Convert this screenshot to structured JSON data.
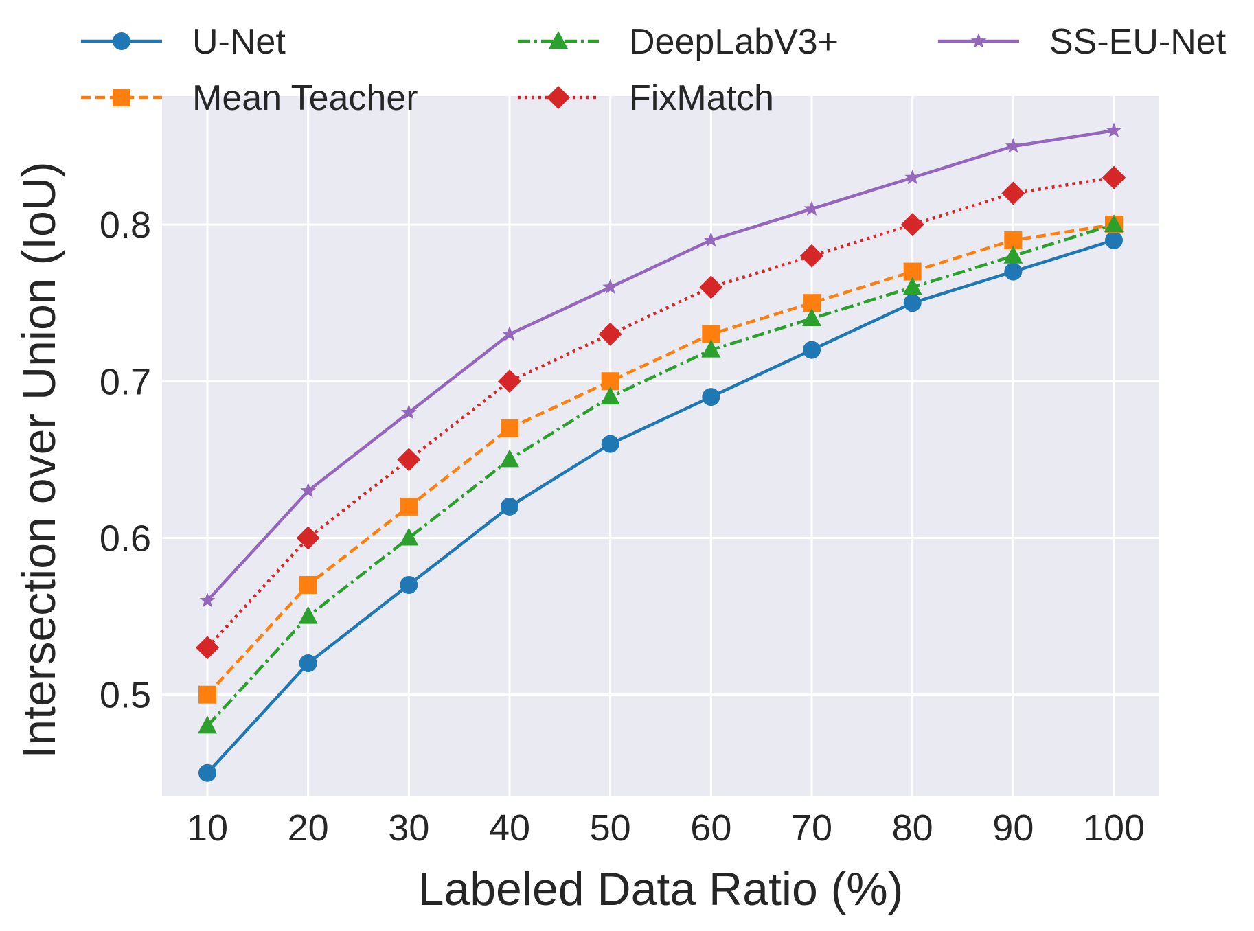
{
  "chart_data": {
    "type": "line",
    "title": "",
    "xlabel": "Labeled Data Ratio (%)",
    "ylabel": "Intersection over Union (IoU)",
    "x": [
      10,
      20,
      30,
      40,
      50,
      60,
      70,
      80,
      90,
      100
    ],
    "x_tick_labels": [
      "10",
      "20",
      "30",
      "40",
      "50",
      "60",
      "70",
      "80",
      "90",
      "100"
    ],
    "y_ticks": [
      0.5,
      0.6,
      0.7,
      0.8
    ],
    "y_tick_labels": [
      "0.5",
      "0.6",
      "0.7",
      "0.8"
    ],
    "ylim": [
      0.435,
      0.882
    ],
    "xlim": [
      5.5,
      104.5
    ],
    "grid": true,
    "legend_position": "top",
    "series": [
      {
        "name": "U-Net",
        "color": "#1f77b4",
        "marker": "circle",
        "linestyle": "solid",
        "values": [
          0.45,
          0.52,
          0.57,
          0.62,
          0.66,
          0.69,
          0.72,
          0.75,
          0.77,
          0.79
        ]
      },
      {
        "name": "Mean Teacher",
        "color": "#ff7f0e",
        "marker": "square",
        "linestyle": "dashed",
        "values": [
          0.5,
          0.57,
          0.62,
          0.67,
          0.7,
          0.73,
          0.75,
          0.77,
          0.79,
          0.8
        ]
      },
      {
        "name": "DeepLabV3+",
        "color": "#2ca02c",
        "marker": "triangle",
        "linestyle": "dashdot",
        "values": [
          0.48,
          0.55,
          0.6,
          0.65,
          0.69,
          0.72,
          0.74,
          0.76,
          0.78,
          0.8
        ]
      },
      {
        "name": "FixMatch",
        "color": "#d62728",
        "marker": "diamond",
        "linestyle": "dotted",
        "values": [
          0.53,
          0.6,
          0.65,
          0.7,
          0.73,
          0.76,
          0.78,
          0.8,
          0.82,
          0.83
        ]
      },
      {
        "name": "SS-EU-Net",
        "color": "#9467bd",
        "marker": "star",
        "linestyle": "solid",
        "values": [
          0.56,
          0.63,
          0.68,
          0.73,
          0.76,
          0.79,
          0.81,
          0.83,
          0.85,
          0.86
        ]
      }
    ]
  }
}
